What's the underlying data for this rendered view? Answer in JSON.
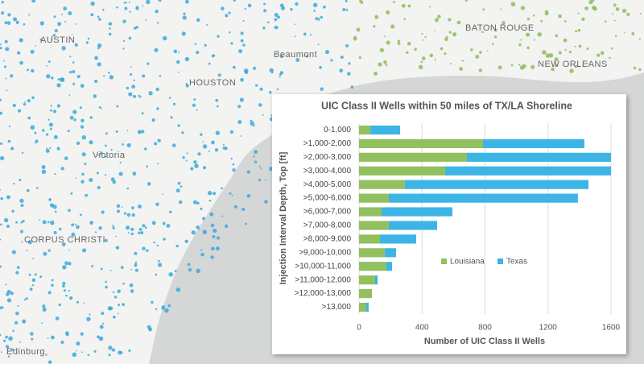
{
  "map": {
    "labels": [
      "AUSTIN",
      "HOUSTON",
      "Beaumont",
      "BATON ROUGE",
      "NEW ORLEANS",
      "Victoria",
      "CORPUS CHRISTI",
      "Edinburg"
    ]
  },
  "chart_data": {
    "type": "bar",
    "orientation": "horizontal",
    "stacked": true,
    "title": "UIC Class II Wells within 50 miles of TX/LA Shoreline",
    "x_label": "Number of UIC Class II Wells",
    "y_label": "Injection Interval Depth, Top [ft]",
    "categories": [
      "0-1,000",
      ">1,000-2,000",
      ">2,000-3,000",
      ">3,000-4,000",
      ">4,000-5,000",
      ">5,000-6,000",
      ">6,000-7,000",
      ">7,000-8,000",
      ">8,000-9,000",
      ">9,000-10,000",
      ">10,000-11,000",
      ">11,000-12,000",
      ">12,000-13,000",
      ">13,000"
    ],
    "series": [
      {
        "name": "Louisiana",
        "color": "#92c05e",
        "values": [
          72,
          787,
          685,
          547,
          291,
          189,
          143,
          189,
          133,
          164,
          174,
          102,
          82,
          46
        ]
      },
      {
        "name": "Texas",
        "color": "#3cb4e6",
        "values": [
          189,
          644,
          915,
          1053,
          1166,
          1201,
          450,
          307,
          230,
          71,
          36,
          16,
          0,
          15
        ]
      }
    ],
    "xlim": [
      0,
      1600
    ],
    "xticks": [
      0,
      400,
      800,
      1200,
      1600
    ],
    "grid": true,
    "legend": "lower right"
  }
}
